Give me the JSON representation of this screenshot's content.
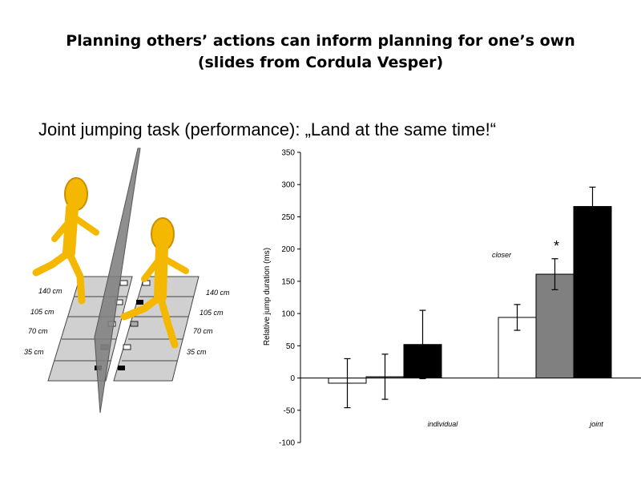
{
  "slide": {
    "title_line1": "Planning others’ actions can  inform planning for one’s own",
    "title_line2": "(slides from Cordula Vesper)",
    "subtitle": "Joint jumping task (performance): „Land at the same time!“"
  },
  "illustration": {
    "distance_labels_left": [
      "140 cm",
      "105 cm",
      "70 cm",
      "35 cm"
    ],
    "distance_labels_right": [
      "140 cm",
      "105 cm",
      "70 cm",
      "35 cm"
    ],
    "figure_color": "#f5b800",
    "divider_color": "#808080"
  },
  "chart_data": {
    "type": "bar",
    "ylabel": "Relative jump duration (ms)",
    "ylim": [
      -100,
      350
    ],
    "yticks": [
      -100,
      -50,
      0,
      50,
      100,
      150,
      200,
      250,
      300,
      350
    ],
    "groups": [
      {
        "name": "individual",
        "bars": [
          {
            "color": "#ffffff",
            "value": -8,
            "error": 38
          },
          {
            "color": "#808080",
            "value": 2,
            "error": 35
          },
          {
            "color": "#000000",
            "value": 52,
            "error": 53
          }
        ]
      },
      {
        "name": "joint",
        "bars": [
          {
            "color": "#ffffff",
            "value": 94,
            "error": 20
          },
          {
            "color": "#808080",
            "value": 161,
            "error": 24
          },
          {
            "color": "#000000",
            "value": 266,
            "error": 30
          }
        ]
      }
    ],
    "annotations": {
      "closer": "closer",
      "significance": "*"
    }
  }
}
